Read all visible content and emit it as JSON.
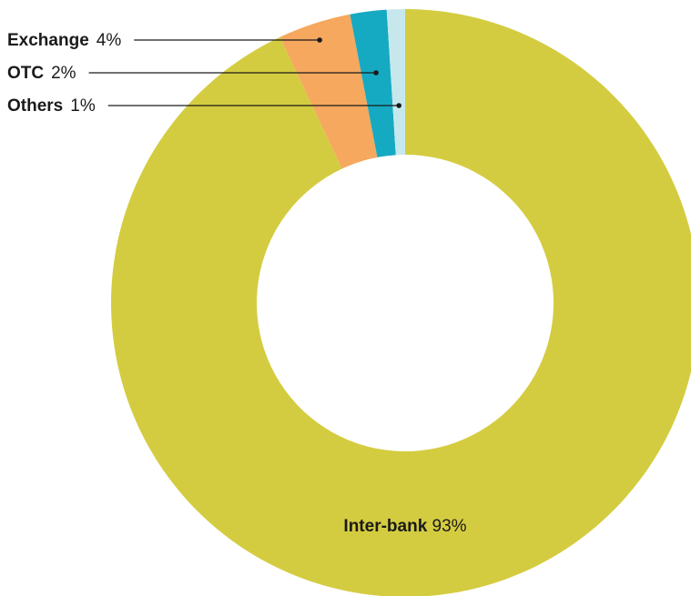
{
  "chart_data": {
    "type": "donut",
    "title": "",
    "unit": "%",
    "slices": [
      {
        "name": "Inter-bank",
        "value": 93,
        "label_value": "93%",
        "color": "#d4cc40",
        "label_style": "inside"
      },
      {
        "name": "Exchange",
        "value": 4,
        "label_value": "4%",
        "color": "#f5a85e",
        "label_style": "leader"
      },
      {
        "name": "OTC",
        "value": 2,
        "label_value": "2%",
        "color": "#15aac2",
        "label_style": "leader"
      },
      {
        "name": "Others",
        "value": 1,
        "label_value": "1%",
        "color": "#c6e8ec",
        "label_style": "leader"
      }
    ],
    "start": "12 o'clock",
    "direction": "clockwise",
    "legend": "none"
  }
}
